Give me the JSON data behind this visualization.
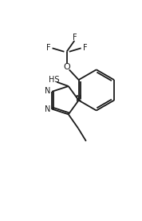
{
  "bg_color": "#ffffff",
  "line_color": "#1a1a1a",
  "line_width": 1.3,
  "font_size": 7.0,
  "fig_width": 1.78,
  "fig_height": 2.77,
  "dpi": 100,
  "xlim": [
    0,
    10
  ],
  "ylim": [
    0,
    15.5
  ]
}
